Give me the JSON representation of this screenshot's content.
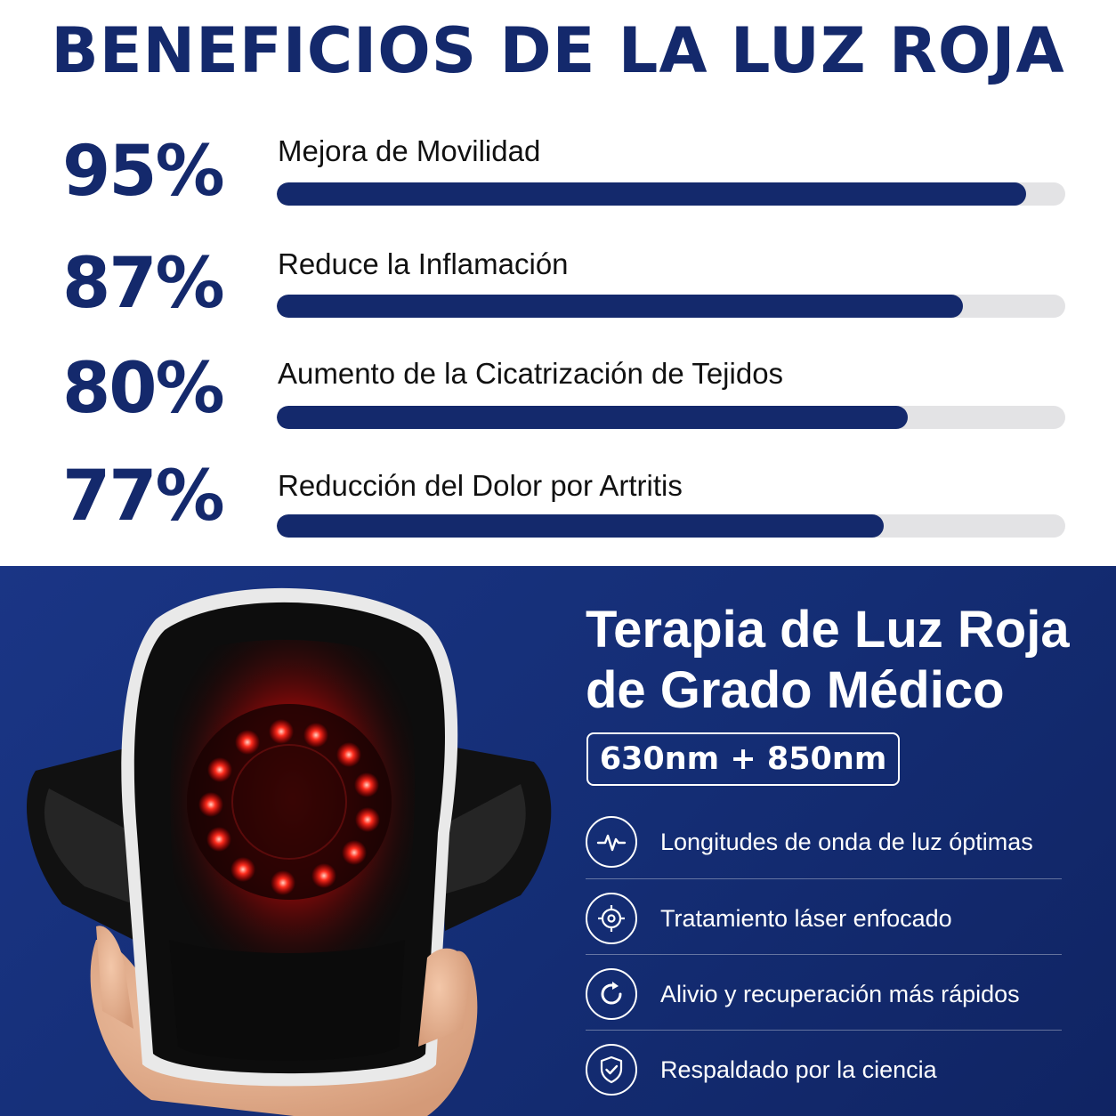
{
  "header": {
    "title": "BENEFICIOS DE LA LUZ ROJA"
  },
  "stats": [
    {
      "percent_label": "95%",
      "label": "Mejora de Movilidad",
      "value": 0.95
    },
    {
      "percent_label": "87%",
      "label": "Reduce la Inflamación",
      "value": 0.87
    },
    {
      "percent_label": "80%",
      "label": "Aumento de la Cicatrización de Tejidos",
      "value": 0.8
    },
    {
      "percent_label": "77%",
      "label": "Reducción del Dolor por Artritis",
      "value": 0.77
    }
  ],
  "product": {
    "title_line1": "Terapia de Luz Roja",
    "title_line2": "de Grado Médico",
    "wavelength_badge": "630nm + 850nm",
    "features": [
      {
        "icon": "pulse-icon",
        "text": "Longitudes de onda de luz óptimas"
      },
      {
        "icon": "target-icon",
        "text": "Tratamiento láser enfocado"
      },
      {
        "icon": "refresh-icon",
        "text": "Alivio y recuperación más rápidos"
      },
      {
        "icon": "shield-check-icon",
        "text": "Respaldado por la ciencia"
      }
    ]
  },
  "colors": {
    "navy": "#14296c",
    "track": "#e3e3e5",
    "panel": "#142d74",
    "led": "#ff2a2a"
  }
}
